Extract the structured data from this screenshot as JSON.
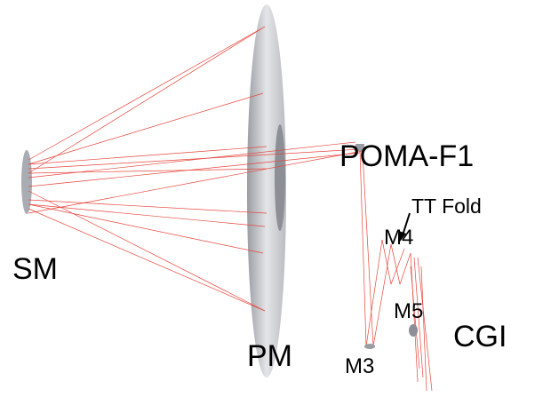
{
  "labels": {
    "sm": "SM",
    "pm": "PM",
    "poma": "POMA-F1",
    "tt_fold": "TT Fold",
    "m4": "M4",
    "m5": "M5",
    "m3": "M3",
    "cgi": "CGI"
  }
}
